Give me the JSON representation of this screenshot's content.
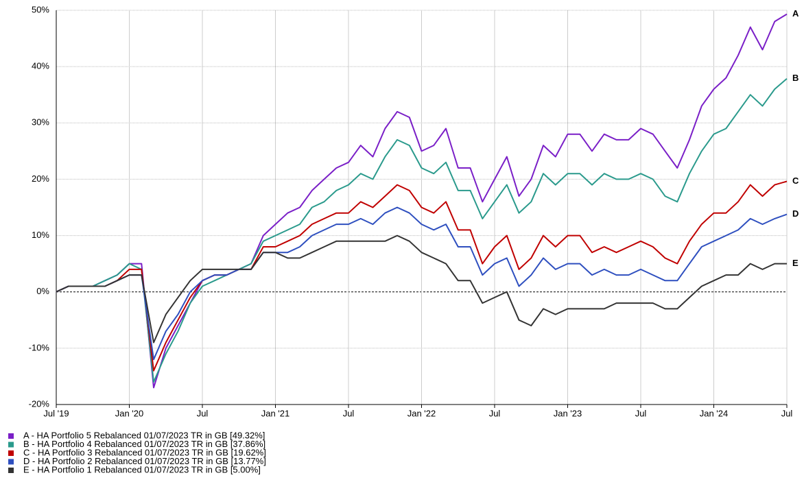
{
  "chart_data": {
    "type": "line",
    "x": [
      "2019-07",
      "2019-08",
      "2019-09",
      "2019-10",
      "2019-11",
      "2019-12",
      "2020-01",
      "2020-02",
      "2020-03",
      "2020-04",
      "2020-05",
      "2020-06",
      "2020-07",
      "2020-08",
      "2020-09",
      "2020-10",
      "2020-11",
      "2020-12",
      "2021-01",
      "2021-02",
      "2021-03",
      "2021-04",
      "2021-05",
      "2021-06",
      "2021-07",
      "2021-08",
      "2021-09",
      "2021-10",
      "2021-11",
      "2021-12",
      "2022-01",
      "2022-02",
      "2022-03",
      "2022-04",
      "2022-05",
      "2022-06",
      "2022-07",
      "2022-08",
      "2022-09",
      "2022-10",
      "2022-11",
      "2022-12",
      "2023-01",
      "2023-02",
      "2023-03",
      "2023-04",
      "2023-05",
      "2023-06",
      "2023-07",
      "2023-08",
      "2023-09",
      "2023-10",
      "2023-11",
      "2023-12",
      "2024-01",
      "2024-02",
      "2024-03",
      "2024-04",
      "2024-05",
      "2024-06",
      "2024-07"
    ],
    "series": [
      {
        "name": "A - HA Portfolio 5 Rebalanced 01/07/2023 TR in GB [49.32%]",
        "end_label": "A",
        "color": "#7a1fc7",
        "values": [
          0,
          1,
          1,
          1,
          2,
          3,
          5,
          5,
          -17,
          -10,
          -6,
          -2,
          2,
          3,
          3,
          4,
          5,
          10,
          12,
          14,
          15,
          18,
          20,
          22,
          23,
          26,
          24,
          29,
          32,
          31,
          25,
          26,
          29,
          22,
          22,
          16,
          20,
          24,
          17,
          20,
          26,
          24,
          28,
          28,
          25,
          28,
          27,
          27,
          29,
          28,
          25,
          22,
          27,
          33,
          36,
          38,
          42,
          47,
          43,
          48,
          49.32
        ]
      },
      {
        "name": "B - HA Portfolio 4 Rebalanced 01/07/2023 TR in GB [37.86%]",
        "end_label": "B",
        "color": "#2a9a8c",
        "values": [
          0,
          1,
          1,
          1,
          2,
          3,
          5,
          4,
          -16,
          -11,
          -7,
          -2,
          1,
          2,
          3,
          4,
          5,
          9,
          10,
          11,
          12,
          15,
          16,
          18,
          19,
          21,
          20,
          24,
          27,
          26,
          22,
          21,
          23,
          18,
          18,
          13,
          16,
          19,
          14,
          16,
          21,
          19,
          21,
          21,
          19,
          21,
          20,
          20,
          21,
          20,
          17,
          16,
          21,
          25,
          28,
          29,
          32,
          35,
          33,
          36,
          37.86
        ]
      },
      {
        "name": "C - HA Portfolio 3 Rebalanced 01/07/2023 TR in GB [19.62%]",
        "end_label": "C",
        "color": "#c00000",
        "values": [
          0,
          1,
          1,
          1,
          1,
          2,
          4,
          4,
          -14,
          -9,
          -5,
          -1,
          2,
          3,
          3,
          4,
          4,
          8,
          8,
          9,
          10,
          12,
          13,
          14,
          14,
          16,
          15,
          17,
          19,
          18,
          15,
          14,
          16,
          11,
          11,
          5,
          8,
          10,
          4,
          6,
          10,
          8,
          10,
          10,
          7,
          8,
          7,
          8,
          9,
          8,
          6,
          5,
          9,
          12,
          14,
          14,
          16,
          19,
          17,
          19,
          19.62
        ]
      },
      {
        "name": "D - HA Portfolio 2 Rebalanced 01/07/2023 TR in GB [13.77%]",
        "end_label": "D",
        "color": "#2e4fbf",
        "values": [
          0,
          1,
          1,
          1,
          1,
          2,
          3,
          3,
          -12,
          -7,
          -4,
          0,
          2,
          3,
          3,
          4,
          4,
          7,
          7,
          7,
          8,
          10,
          11,
          12,
          12,
          13,
          12,
          14,
          15,
          14,
          12,
          11,
          12,
          8,
          8,
          3,
          5,
          6,
          1,
          3,
          6,
          4,
          5,
          5,
          3,
          4,
          3,
          3,
          4,
          3,
          2,
          2,
          5,
          8,
          9,
          10,
          11,
          13,
          12,
          13,
          13.77
        ]
      },
      {
        "name": "E - HA Portfolio 1 Rebalanced 01/07/2023 TR in GB [5.00%]",
        "end_label": "E",
        "color": "#333333",
        "values": [
          0,
          1,
          1,
          1,
          1,
          2,
          3,
          3,
          -9,
          -4,
          -1,
          2,
          4,
          4,
          4,
          4,
          4,
          7,
          7,
          6,
          6,
          7,
          8,
          9,
          9,
          9,
          9,
          9,
          10,
          9,
          7,
          6,
          5,
          2,
          2,
          -2,
          -1,
          0,
          -5,
          -6,
          -3,
          -4,
          -3,
          -3,
          -3,
          -3,
          -2,
          -2,
          -2,
          -2,
          -3,
          -3,
          -1,
          1,
          2,
          3,
          3,
          5,
          4,
          5,
          5.0
        ]
      }
    ],
    "xlim": [
      "2019-07",
      "2024-07"
    ],
    "xticks": [
      {
        "value": "2019-07",
        "label": "Jul '19"
      },
      {
        "value": "2020-01",
        "label": "Jan '20"
      },
      {
        "value": "2020-07",
        "label": "Jul"
      },
      {
        "value": "2021-01",
        "label": "Jan '21"
      },
      {
        "value": "2021-07",
        "label": "Jul"
      },
      {
        "value": "2022-01",
        "label": "Jan '22"
      },
      {
        "value": "2022-07",
        "label": "Jul"
      },
      {
        "value": "2023-01",
        "label": "Jan '23"
      },
      {
        "value": "2023-07",
        "label": "Jul"
      },
      {
        "value": "2024-01",
        "label": "Jan '24"
      },
      {
        "value": "2024-07",
        "label": "Jul"
      }
    ],
    "ylim": [
      -20,
      50
    ],
    "yticks": [
      {
        "value": -20,
        "label": "-20%"
      },
      {
        "value": -10,
        "label": "-10%"
      },
      {
        "value": 0,
        "label": "0%"
      },
      {
        "value": 10,
        "label": "10%"
      },
      {
        "value": 20,
        "label": "20%"
      },
      {
        "value": 30,
        "label": "30%"
      },
      {
        "value": 40,
        "label": "40%"
      },
      {
        "value": 50,
        "label": "50%"
      }
    ],
    "grid": true
  }
}
